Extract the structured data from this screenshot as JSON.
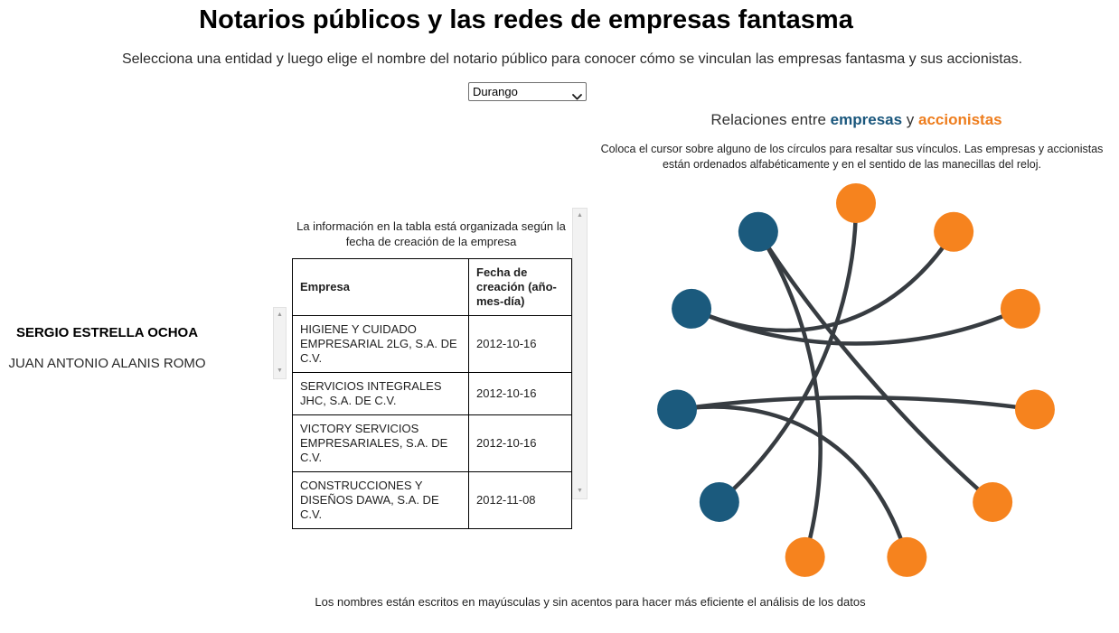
{
  "page": {
    "title": "Notarios públicos y las redes de empresas fantasma",
    "subtitle": "Selecciona una entidad y luego elige el nombre del notario público para conocer cómo se vinculan las empresas fantasma y sus accionistas.",
    "footnote": "Los nombres están escritos en mayúsculas y sin acentos para hacer más eficiente el análisis de los datos"
  },
  "entity_select": {
    "value": "Durango"
  },
  "icons": {
    "scroll_up": "▲",
    "scroll_down": "▼"
  },
  "notaries": {
    "items": [
      {
        "name": "JUAN ANTONIO ALANIS ROMO",
        "selected": false
      },
      {
        "name": "SERGIO ESTRELLA OCHOA",
        "selected": true
      }
    ]
  },
  "table_panel": {
    "caption": "La información en la tabla está organizada según la fecha de creación de la empresa",
    "columns": [
      "Empresa",
      "Fecha de creación (año-mes-día)"
    ],
    "rows": [
      [
        "HIGIENE Y CUIDADO EMPRESARIAL 2LG, S.A. DE C.V.",
        "2012-10-16"
      ],
      [
        "SERVICIOS INTEGRALES JHC, S.A. DE C.V.",
        "2012-10-16"
      ],
      [
        "VICTORY SERVICIOS EMPRESARIALES, S.A. DE C.V.",
        "2012-10-16"
      ],
      [
        "CONSTRUCCIONES Y DISEÑOS DAWA, S.A. DE C.V.",
        "2012-11-08"
      ]
    ]
  },
  "network_panel": {
    "heading_prefix": "Relaciones entre ",
    "heading_empresas": "empresas",
    "heading_conj": " y ",
    "heading_accionistas": "accionistas",
    "instructions": "Coloca el cursor sobre alguno de los círculos para resaltar sus vínculos. Las empresas y accionistas están ordenados alfabéticamente y en el sentido de las manecillas del reloj.",
    "empresa_text_color": "#19567c",
    "accionista_text_color": "#ee7d1d"
  },
  "chart_data": {
    "type": "network",
    "title": "Relaciones entre empresas y accionistas",
    "description": "11 círculos ordenados alfabéticamente en el sentido de las manecillas del reloj: 7 accionistas (naranja) y 4 empresas (azul), unidos por vínculos curvos",
    "layout": {
      "center": [
        292,
        235
      ],
      "radius": 200,
      "node_radius": 22,
      "curve_pull": 0.62,
      "start_angle_deg": -90,
      "clockwise": true,
      "link_width": 4.5
    },
    "colors": {
      "empresa": "#1b5a7d",
      "accionista": "#f6831e",
      "link": "#373c41"
    },
    "nodes": [
      {
        "group": "accionista"
      },
      {
        "group": "accionista"
      },
      {
        "group": "accionista"
      },
      {
        "group": "accionista"
      },
      {
        "group": "accionista"
      },
      {
        "group": "accionista"
      },
      {
        "group": "accionista"
      },
      {
        "group": "empresa"
      },
      {
        "group": "empresa"
      },
      {
        "group": "empresa"
      },
      {
        "group": "empresa"
      }
    ],
    "links": [
      [
        0,
        7
      ],
      [
        10,
        6
      ],
      [
        10,
        4
      ],
      [
        9,
        1
      ],
      [
        9,
        2
      ],
      [
        8,
        3
      ],
      [
        8,
        5
      ]
    ]
  }
}
